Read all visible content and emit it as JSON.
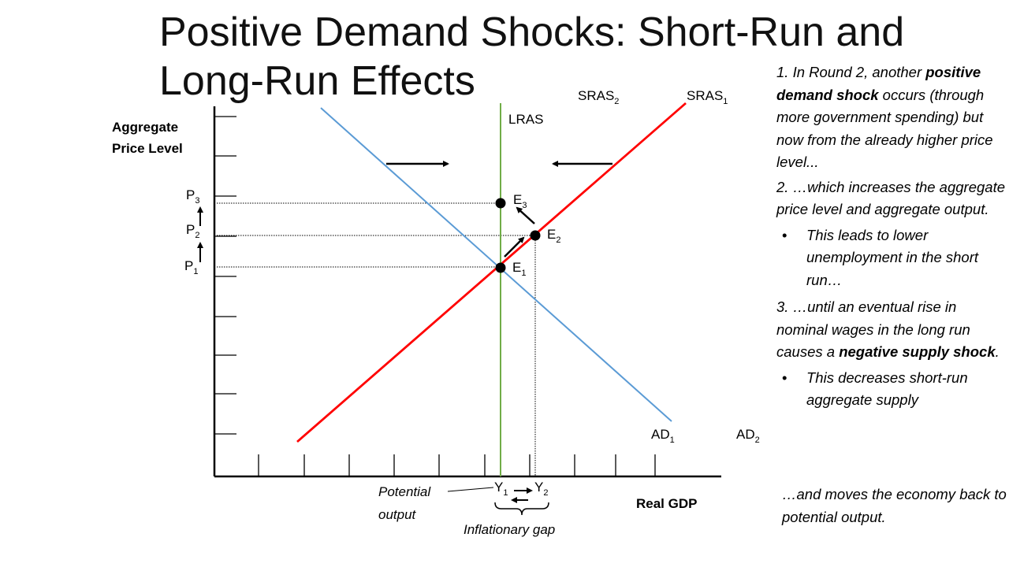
{
  "title": {
    "line1": "Positive Demand Shocks: Short-Run and",
    "line2": "Long-Run Effects"
  },
  "axes": {
    "y_label_line1": "Aggregate",
    "y_label_line2": "Price Level",
    "x_label": "Real GDP"
  },
  "curves": {
    "lras": "LRAS",
    "sras2": {
      "base": "SRAS",
      "sub": "2"
    },
    "sras1": {
      "base": "SRAS",
      "sub": "1"
    },
    "ad1": {
      "base": "AD",
      "sub": "1"
    },
    "ad2": {
      "base": "AD",
      "sub": "2"
    }
  },
  "price_labels": [
    {
      "base": "P",
      "sub": "3"
    },
    {
      "base": "P",
      "sub": "2"
    },
    {
      "base": "P",
      "sub": "1"
    }
  ],
  "equilibria": [
    {
      "base": "E",
      "sub": "3"
    },
    {
      "base": "E",
      "sub": "2"
    },
    {
      "base": "E",
      "sub": "1"
    }
  ],
  "output_labels": [
    {
      "base": "Y",
      "sub": "1"
    },
    {
      "base": "Y",
      "sub": "2"
    }
  ],
  "annotations": {
    "potential_line1": "Potential",
    "potential_line2": "output",
    "inflationary_gap": "Inflationary gap"
  },
  "notes": {
    "n1_pre": "1. In Round 2, another ",
    "n1_bold": "positive demand shock",
    "n1_post": " occurs (through more government spending) but now from the already higher price level...",
    "n2": "2. …which increases the aggregate price level and aggregate output.",
    "b1": "This leads to lower unemployment in the short run…",
    "n3_pre": "3. …until an eventual rise in nominal wages in the long run causes a ",
    "n3_bold": "negative supply shock",
    "n3_post": ".",
    "b2": "This decreases short-run aggregate supply",
    "bullet_char": "•",
    "closing": "…and moves the economy back to potential output."
  },
  "colors": {
    "ad_line": "#5b9bd5",
    "sras_line": "#ff0000",
    "lras_line": "#70ad47",
    "axis": "#000000"
  }
}
